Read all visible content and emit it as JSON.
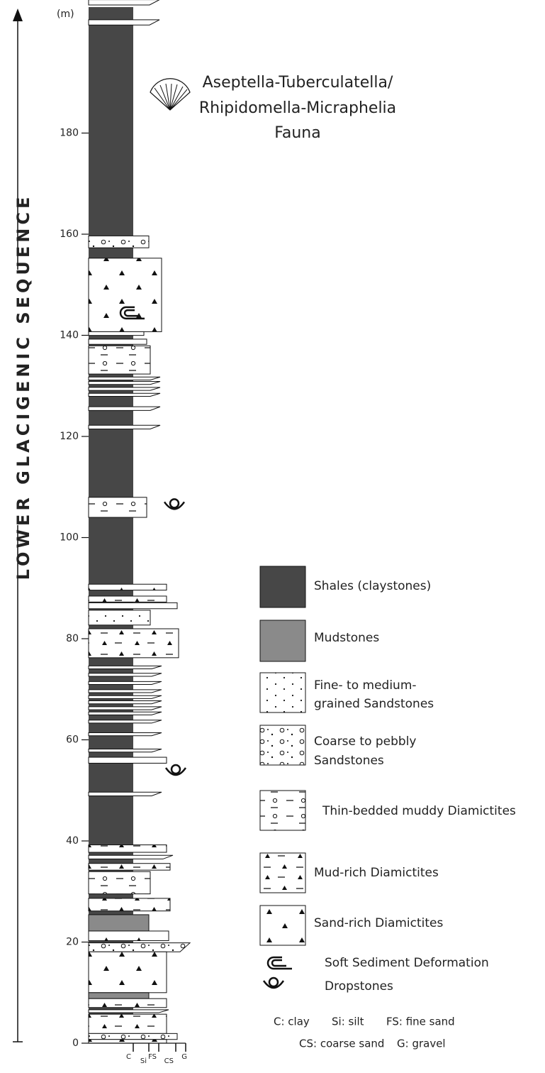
{
  "axis": {
    "unit": "(m)",
    "ticks": [
      0,
      20,
      40,
      60,
      80,
      100,
      120,
      140,
      160,
      180
    ]
  },
  "grain_size": [
    "C",
    "Si",
    "FS",
    "CS",
    "G"
  ],
  "sequence_label": "LOWER GLACIGENIC SEQUENCE",
  "fauna": [
    "Aseptella-Tuberculatella/",
    "Rhipidomella-Micraphelia",
    "Fauna"
  ],
  "legend": {
    "items": [
      {
        "lines": [
          "Shales (claystones)"
        ]
      },
      {
        "lines": [
          "Mudstones"
        ]
      },
      {
        "lines": [
          "Fine- to medium-",
          "grained Sandstones"
        ]
      },
      {
        "lines": [
          "Coarse to pebbly",
          "Sandstones"
        ]
      },
      {
        "lines": [
          "Thin-bedded muddy Diamictites"
        ]
      },
      {
        "lines": [
          "Mud-rich Diamictites"
        ]
      },
      {
        "lines": [
          "Sand-rich Diamictites"
        ]
      },
      {
        "lines": [
          "Soft Sediment Deformation"
        ]
      },
      {
        "lines": [
          "Dropstones"
        ]
      }
    ]
  },
  "abbreviations": [
    [
      "C: clay",
      "Si: silt",
      "FS: fine sand"
    ],
    [
      "CS: coarse sand",
      "G: gravel"
    ]
  ]
}
